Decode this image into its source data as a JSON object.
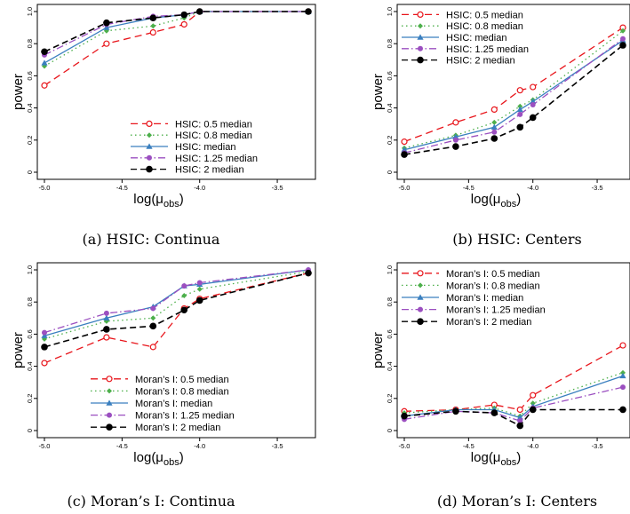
{
  "captions": [
    "(a) HSIC: Continua",
    "(b) HSIC: Centers",
    "(c) Moran’s I: Continua",
    "(d) Moran’s I: Centers"
  ],
  "colors": {
    "0.5": "#e8151b",
    "0.8": "#4caf4a",
    "1": "#3a7fbf",
    "1.25": "#9b4fc0",
    "2": "#000000"
  },
  "chart_data": [
    {
      "type": "line",
      "caption": "(a) HSIC: Continua",
      "xlabel": "log(μ_obs)",
      "ylabel": "power",
      "xlim": [
        -5.0,
        -3.3
      ],
      "ylim": [
        0,
        1.0
      ],
      "xticks": [
        "-5.0",
        "-4.5",
        "-4.0",
        "-3.5"
      ],
      "yticks": [
        "0",
        "0.2",
        "0.4",
        "0.6",
        "0.8",
        "1.0"
      ],
      "legend_position": "bottom-right",
      "x": [
        -5.0,
        -4.6,
        -4.3,
        -4.1,
        -4.0,
        -3.3
      ],
      "series": [
        {
          "name": "HSIC: 0.5 median",
          "values": [
            0.54,
            0.8,
            0.87,
            0.92,
            1.0,
            1.0
          ]
        },
        {
          "name": "HSIC: 0.8 median",
          "values": [
            0.66,
            0.88,
            0.91,
            0.96,
            1.0,
            1.0
          ]
        },
        {
          "name": "HSIC: median",
          "values": [
            0.68,
            0.9,
            0.96,
            0.98,
            1.0,
            1.0
          ]
        },
        {
          "name": "HSIC: 1.25 median",
          "values": [
            0.73,
            0.92,
            0.97,
            0.98,
            1.0,
            1.0
          ]
        },
        {
          "name": "HSIC: 2 median",
          "values": [
            0.75,
            0.93,
            0.96,
            0.98,
            1.0,
            1.0
          ]
        }
      ]
    },
    {
      "type": "line",
      "caption": "(b) HSIC: Centers",
      "xlabel": "log(μ_obs)",
      "ylabel": "power",
      "xlim": [
        -5.0,
        -3.3
      ],
      "ylim": [
        0,
        1.0
      ],
      "xticks": [
        "-5.0",
        "-4.5",
        "-4.0",
        "-3.5"
      ],
      "yticks": [
        "0",
        "0.2",
        "0.4",
        "0.6",
        "0.8",
        "1.0"
      ],
      "legend_position": "top-left",
      "x": [
        -5.0,
        -4.6,
        -4.3,
        -4.1,
        -4.0,
        -3.3
      ],
      "series": [
        {
          "name": "HSIC: 0.5 median",
          "values": [
            0.19,
            0.31,
            0.39,
            0.51,
            0.53,
            0.9
          ]
        },
        {
          "name": "HSIC: 0.8 median",
          "values": [
            0.15,
            0.23,
            0.31,
            0.41,
            0.45,
            0.88
          ]
        },
        {
          "name": "HSIC: median",
          "values": [
            0.14,
            0.22,
            0.28,
            0.39,
            0.44,
            0.82
          ]
        },
        {
          "name": "HSIC: 1.25 median",
          "values": [
            0.12,
            0.2,
            0.25,
            0.36,
            0.42,
            0.83
          ]
        },
        {
          "name": "HSIC: 2 median",
          "values": [
            0.11,
            0.16,
            0.21,
            0.28,
            0.34,
            0.79
          ]
        }
      ]
    },
    {
      "type": "line",
      "caption": "(c) Moran’s I: Continua",
      "xlabel": "log(μ_obs)",
      "ylabel": "power",
      "xlim": [
        -5.0,
        -3.3
      ],
      "ylim": [
        0,
        1.0
      ],
      "xticks": [
        "-5.0",
        "-4.5",
        "-4.0",
        "-3.5"
      ],
      "yticks": [
        "0",
        "0.2",
        "0.4",
        "0.6",
        "0.8",
        "1.0"
      ],
      "legend_position": "bottom-right",
      "x": [
        -5.0,
        -4.6,
        -4.3,
        -4.1,
        -4.0,
        -3.3
      ],
      "series": [
        {
          "name": "Moran’s I: 0.5 median",
          "values": [
            0.42,
            0.58,
            0.52,
            0.76,
            0.82,
            0.98
          ]
        },
        {
          "name": "Moran’s I: 0.8 median",
          "values": [
            0.57,
            0.68,
            0.7,
            0.84,
            0.88,
            0.99
          ]
        },
        {
          "name": "Moran’s I: median",
          "values": [
            0.59,
            0.7,
            0.77,
            0.9,
            0.91,
            1.0
          ]
        },
        {
          "name": "Moran’s I: 1.25 median",
          "values": [
            0.61,
            0.73,
            0.76,
            0.9,
            0.92,
            1.0
          ]
        },
        {
          "name": "Moran’s I: 2 median",
          "values": [
            0.52,
            0.63,
            0.65,
            0.75,
            0.81,
            0.98
          ]
        }
      ]
    },
    {
      "type": "line",
      "caption": "(d) Moran’s I: Centers",
      "xlabel": "log(μ_obs)",
      "ylabel": "power",
      "xlim": [
        -5.0,
        -3.3
      ],
      "ylim": [
        0,
        1.0
      ],
      "xticks": [
        "-5.0",
        "-4.5",
        "-4.0",
        "-3.5"
      ],
      "yticks": [
        "0",
        "0.2",
        "0.4",
        "0.6",
        "0.8",
        "1.0"
      ],
      "legend_position": "top-left",
      "x": [
        -5.0,
        -4.6,
        -4.3,
        -4.1,
        -4.0,
        -3.3
      ],
      "series": [
        {
          "name": "Moran’s I: 0.5 median",
          "values": [
            0.12,
            0.13,
            0.16,
            0.13,
            0.22,
            0.53
          ]
        },
        {
          "name": "Moran’s I: 0.8 median",
          "values": [
            0.11,
            0.13,
            0.14,
            0.09,
            0.17,
            0.36
          ]
        },
        {
          "name": "Moran’s I: median",
          "values": [
            0.09,
            0.13,
            0.13,
            0.08,
            0.15,
            0.34
          ]
        },
        {
          "name": "Moran’s I: 1.25 median",
          "values": [
            0.07,
            0.12,
            0.11,
            0.06,
            0.14,
            0.27
          ]
        },
        {
          "name": "Moran’s I: 2 median",
          "values": [
            0.09,
            0.12,
            0.11,
            0.03,
            0.13,
            0.13
          ]
        }
      ]
    }
  ]
}
